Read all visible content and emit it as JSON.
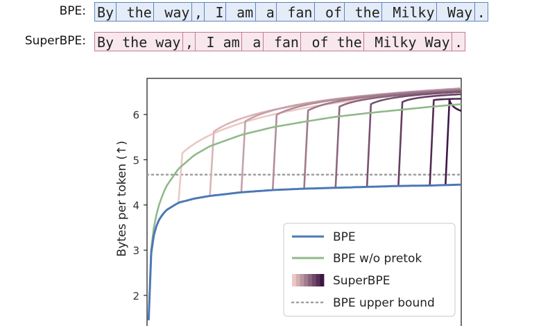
{
  "tokenization": {
    "rows": [
      {
        "label": "BPE:",
        "style": "bpe",
        "tokens": [
          "By",
          " the",
          " way",
          ",",
          " I",
          " am",
          " a",
          " fan",
          " of",
          " the",
          " Milky",
          " Way",
          "."
        ]
      },
      {
        "label": "SuperBPE:",
        "style": "super",
        "tokens": [
          "By the way",
          ",",
          " I am",
          " a",
          " fan",
          " of the",
          " Milky Way",
          "."
        ]
      }
    ]
  },
  "chart_data": {
    "type": "line",
    "title": "",
    "xlabel": "",
    "ylabel": "Bytes per token (↑)",
    "ylim": [
      1.2,
      6.8
    ],
    "yticks": [
      2,
      3,
      4,
      5,
      6
    ],
    "xlim": [
      0,
      200
    ],
    "grid": false,
    "legend_position": "lower-right",
    "series": [
      {
        "name": "BPE",
        "color": "#4c78b5",
        "x": [
          1,
          2,
          3,
          5,
          8,
          12,
          20,
          30,
          40,
          60,
          80,
          100,
          120,
          140,
          160,
          180,
          200
        ],
        "y": [
          1.45,
          2.6,
          3.1,
          3.45,
          3.7,
          3.88,
          4.05,
          4.14,
          4.2,
          4.28,
          4.33,
          4.36,
          4.38,
          4.4,
          4.42,
          4.43,
          4.45
        ]
      },
      {
        "name": "BPE w/o pretok",
        "color": "#90b98a",
        "x": [
          1,
          2,
          3,
          5,
          8,
          12,
          20,
          30,
          40,
          60,
          80,
          100,
          120,
          140,
          160,
          180,
          200
        ],
        "y": [
          1.45,
          2.7,
          3.2,
          3.65,
          4.05,
          4.4,
          4.8,
          5.1,
          5.3,
          5.55,
          5.72,
          5.84,
          5.95,
          6.03,
          6.1,
          6.17,
          6.23
        ]
      },
      {
        "name": "SuperBPE",
        "color_range": [
          "#ecc8c4",
          "#3e1744"
        ],
        "transitions": [
          20,
          40,
          60,
          80,
          100,
          120,
          140,
          160,
          180,
          190
        ],
        "endpoints": [
          6.58,
          6.58,
          6.58,
          6.56,
          6.55,
          6.52,
          6.5,
          6.45,
          6.35,
          6.08
        ]
      },
      {
        "name": "BPE upper bound",
        "color": "#a0a0a0",
        "value": 4.67
      }
    ]
  }
}
